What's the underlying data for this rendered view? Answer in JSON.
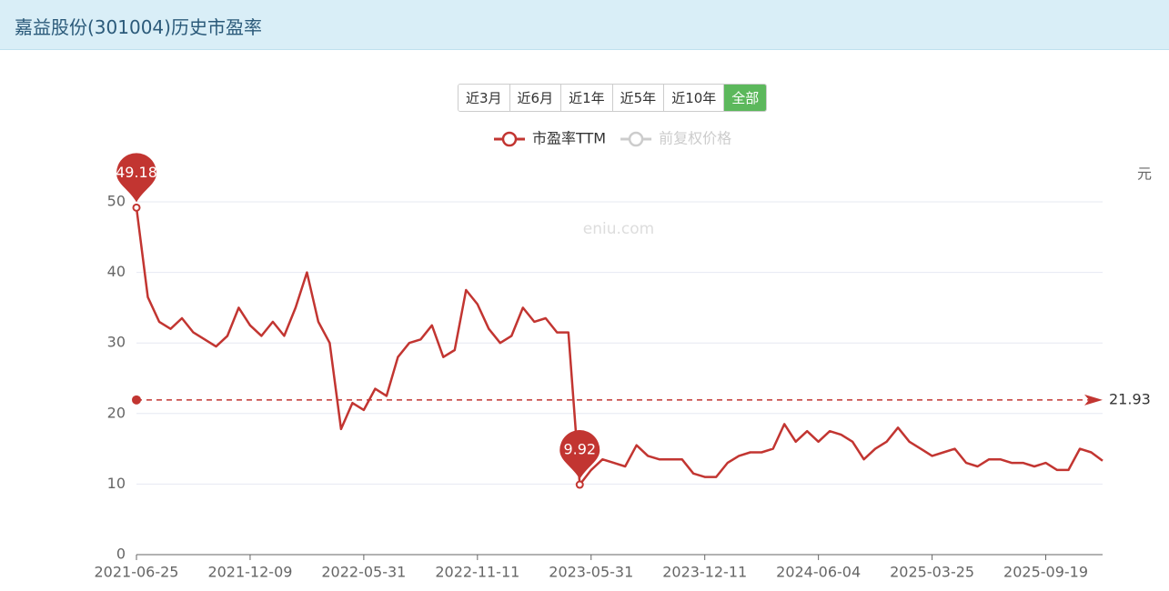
{
  "page_title": "嘉益股份(301004)历史市盈率",
  "range_buttons": [
    "近3月",
    "近6月",
    "近1年",
    "近5年",
    "近10年",
    "全部"
  ],
  "active_button": "全部",
  "watermark": "eniu.com",
  "chart_data": {
    "type": "line",
    "categories": [
      "2021-06-25",
      null,
      null,
      null,
      null,
      null,
      null,
      null,
      null,
      null,
      "2021-12-09",
      null,
      null,
      null,
      null,
      null,
      null,
      null,
      null,
      null,
      "2022-05-31",
      null,
      null,
      null,
      null,
      null,
      null,
      null,
      null,
      null,
      "2022-11-11",
      null,
      null,
      null,
      null,
      null,
      null,
      null,
      null,
      null,
      "2023-05-31",
      null,
      null,
      null,
      null,
      null,
      null,
      null,
      null,
      null,
      "2023-12-11",
      null,
      null,
      null,
      null,
      null,
      null,
      null,
      null,
      null,
      "2024-06-04",
      null,
      null,
      null,
      null,
      null,
      null,
      null,
      null,
      null,
      "2025-03-25",
      null,
      null,
      null,
      null,
      null,
      null,
      null,
      null,
      null,
      "2025-09-19",
      null,
      null,
      null,
      null,
      null
    ],
    "series": [
      {
        "name": "市盈率TTM",
        "color": "#c23531",
        "values": [
          49.18,
          36.5,
          33,
          32,
          33.5,
          31.5,
          30.5,
          29.5,
          31,
          35,
          32.5,
          31,
          33,
          31,
          35,
          40,
          33,
          30,
          17.8,
          21.5,
          20.5,
          23.5,
          22.5,
          28,
          30,
          30.5,
          32.5,
          28,
          29,
          37.5,
          35.5,
          32,
          30,
          31,
          35,
          33,
          33.5,
          31.5,
          31.5,
          9.92,
          12,
          13.5,
          13,
          12.5,
          15.5,
          14,
          13.5,
          13.5,
          13.5,
          11.5,
          11,
          11,
          13,
          14,
          14.5,
          14.5,
          15,
          18.5,
          16,
          17.5,
          16,
          17.5,
          17,
          16,
          13.5,
          15,
          16,
          18,
          16,
          15,
          14,
          14.5,
          15,
          13,
          12.5,
          13.5,
          13.5,
          13,
          13,
          12.5,
          13,
          12,
          12,
          15,
          14.5,
          13.3
        ]
      },
      {
        "name": "前复权价格",
        "color": "#cccccc",
        "visible": false
      }
    ],
    "max_label": 49.18,
    "min_label": 9.92,
    "average": 21.93,
    "ylim": [
      0,
      50
    ],
    "yticks": [
      0,
      10,
      20,
      30,
      40,
      50
    ],
    "y2_label": "元",
    "grid": true
  }
}
